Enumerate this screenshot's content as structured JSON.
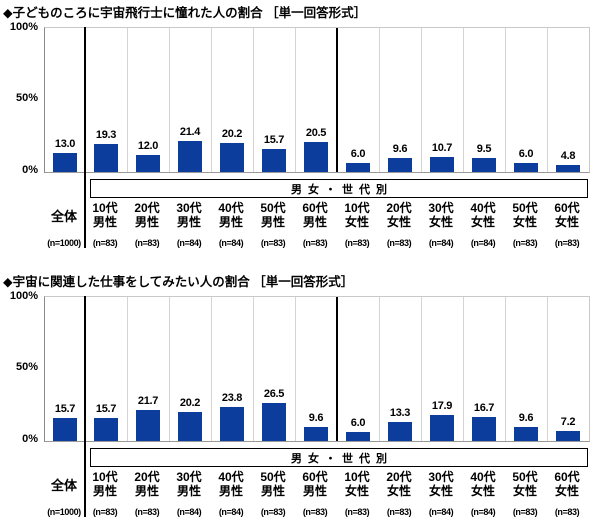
{
  "accent_color": "#0d3d9c",
  "chart_data": [
    {
      "type": "bar",
      "title": "◆子どものころに宇宙飛行士に憧れた人の割合 ［単一回答形式］",
      "ylabel_ticks": [
        "100%",
        "50%",
        "0%"
      ],
      "ylim": [
        0,
        100
      ],
      "grid": "vertical-column-separators-only",
      "legend_position": "none",
      "group_band_label": "男女・世代別",
      "overall": {
        "label": "全体",
        "n": "(n=1000)",
        "value": 13.0
      },
      "categories": [
        "10代男性",
        "20代男性",
        "30代男性",
        "40代男性",
        "50代男性",
        "60代男性",
        "10代女性",
        "20代女性",
        "30代女性",
        "40代女性",
        "50代女性",
        "60代女性"
      ],
      "ns": [
        "(n=83)",
        "(n=83)",
        "(n=84)",
        "(n=84)",
        "(n=83)",
        "(n=83)",
        "(n=83)",
        "(n=83)",
        "(n=84)",
        "(n=84)",
        "(n=83)",
        "(n=83)"
      ],
      "values": [
        19.3,
        12.0,
        21.4,
        20.2,
        15.7,
        20.5,
        6.0,
        9.6,
        10.7,
        9.5,
        6.0,
        4.8
      ]
    },
    {
      "type": "bar",
      "title": "◆宇宙に関連した仕事をしてみたい人の割合 ［単一回答形式］",
      "ylabel_ticks": [
        "100%",
        "50%",
        "0%"
      ],
      "ylim": [
        0,
        100
      ],
      "grid": "vertical-column-separators-only",
      "legend_position": "none",
      "group_band_label": "男女・世代別",
      "overall": {
        "label": "全体",
        "n": "(n=1000)",
        "value": 15.7
      },
      "categories": [
        "10代男性",
        "20代男性",
        "30代男性",
        "40代男性",
        "50代男性",
        "60代男性",
        "10代女性",
        "20代女性",
        "30代女性",
        "40代女性",
        "50代女性",
        "60代女性"
      ],
      "ns": [
        "(n=83)",
        "(n=83)",
        "(n=84)",
        "(n=84)",
        "(n=83)",
        "(n=83)",
        "(n=83)",
        "(n=83)",
        "(n=84)",
        "(n=84)",
        "(n=83)",
        "(n=83)"
      ],
      "values": [
        15.7,
        21.7,
        20.2,
        23.8,
        26.5,
        9.6,
        6.0,
        13.3,
        17.9,
        16.7,
        9.6,
        7.2
      ]
    }
  ]
}
